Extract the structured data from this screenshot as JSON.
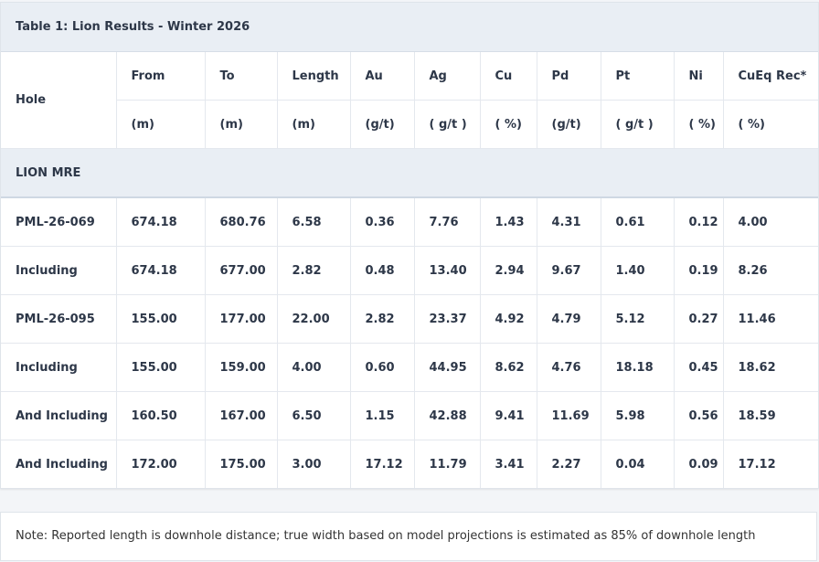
{
  "header": {
    "title": "Table 1: Lion Results - Winter 2026"
  },
  "table": {
    "columns": [
      "Hole",
      "From",
      "To",
      "Length",
      "Au",
      "Ag",
      "Cu",
      "Pd",
      "Pt",
      "Ni",
      "CuEq Rec*"
    ],
    "units": [
      "(m)",
      "(m)",
      "(m)",
      "(g/t)",
      "( g/t )",
      "( %)",
      "(g/t)",
      "( g/t )",
      "( %)",
      "( %)"
    ],
    "section": "LION MRE",
    "rows": [
      [
        "PML-26-069",
        "674.18",
        "680.76",
        "6.58",
        "0.36",
        "7.76",
        "1.43",
        "4.31",
        "0.61",
        "0.12",
        "4.00"
      ],
      [
        "Including",
        "674.18",
        "677.00",
        "2.82",
        "0.48",
        "13.40",
        "2.94",
        "9.67",
        "1.40",
        "0.19",
        "8.26"
      ],
      [
        "PML-26-095",
        "155.00",
        "177.00",
        "22.00",
        "2.82",
        "23.37",
        "4.92",
        "4.79",
        "5.12",
        "0.27",
        "11.46"
      ],
      [
        "Including",
        "155.00",
        "159.00",
        "4.00",
        "0.60",
        "44.95",
        "8.62",
        "4.76",
        "18.18",
        "0.45",
        "18.62"
      ],
      [
        "And Including",
        "160.50",
        "167.00",
        "6.50",
        "1.15",
        "42.88",
        "9.41",
        "11.69",
        "5.98",
        "0.56",
        "18.59"
      ],
      [
        "And Including",
        "172.00",
        "175.00",
        "3.00",
        "17.12",
        "11.79",
        "3.41",
        "2.27",
        "0.04",
        "0.09",
        "17.12"
      ]
    ]
  },
  "note": "Note: Reported length is downhole distance; true width based on model projections is estimated as 85% of downhole length"
}
